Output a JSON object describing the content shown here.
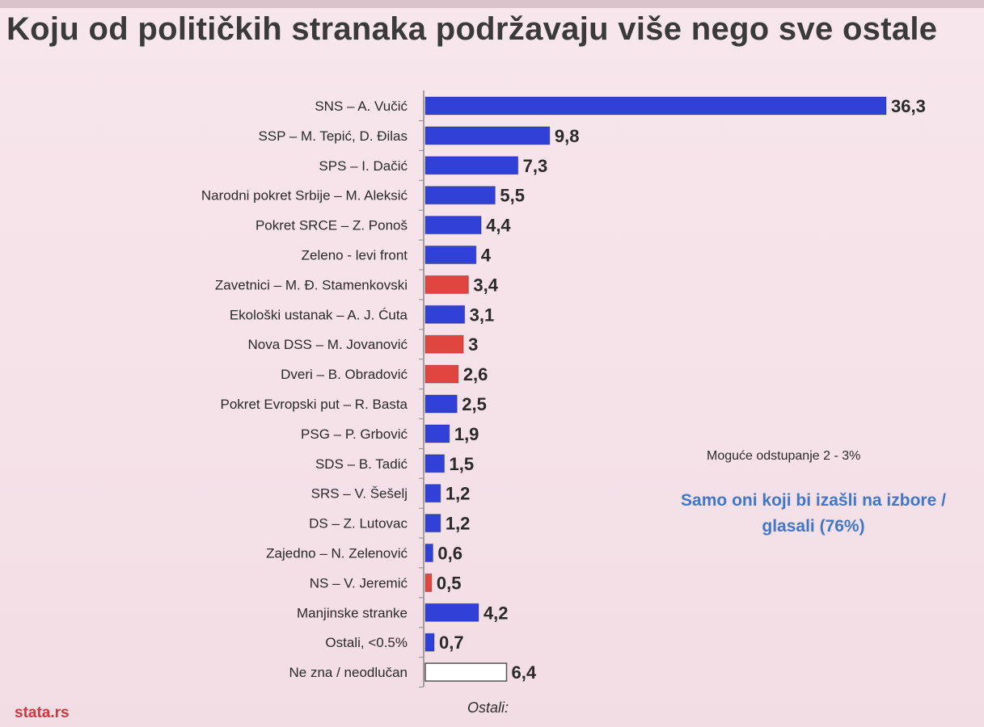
{
  "title": "Koju od političkih stranaka podržavaju više nego sve ostale",
  "note": "Moguće odstupanje 2 - 3%",
  "highlight": "Samo oni koji bi izašli na izbore / glasali (76%)",
  "footer_label": "Ostali:",
  "source": "stata.rs",
  "colors": {
    "blue": "#3140d6",
    "red": "#e0453f",
    "empty": "#ffffff",
    "outline": "#555555",
    "highlight_text": "#3f78c8",
    "source_text": "#c43c3c"
  },
  "chart_data": {
    "type": "bar",
    "orientation": "horizontal",
    "title": "Koju od političkih stranaka podržavaju više nego sve ostale",
    "categories": [
      "SNS – A. Vučić",
      "SSP – M. Tepić, D. Đilas",
      "SPS – I. Dačić",
      "Narodni pokret Srbije – M. Aleksić",
      "Pokret SRCE – Z. Ponoš",
      "Zeleno - levi front",
      "Zavetnici – M. Đ. Stamenkovski",
      "Ekološki ustanak – A. J. Ćuta",
      "Nova DSS – M. Jovanović",
      "Dveri – B. Obradović",
      "Pokret Evropski put – R. Basta",
      "PSG – P. Grbović",
      "SDS – B. Tadić",
      "SRS – V. Šešelj",
      "DS – Z. Lutovac",
      "Zajedno – N. Zelenović",
      "NS – V. Jeremić",
      "Manjinske stranke",
      "Ostali, <0.5%",
      "Ne zna / neodlučan"
    ],
    "values": [
      36.3,
      9.8,
      7.3,
      5.5,
      4.4,
      4,
      3.4,
      3.1,
      3,
      2.6,
      2.5,
      1.9,
      1.5,
      1.2,
      1.2,
      0.6,
      0.5,
      4.2,
      0.7,
      6.4
    ],
    "value_labels": [
      "36,3",
      "9,8",
      "7,3",
      "5,5",
      "4,4",
      "4",
      "3,4",
      "3,1",
      "3",
      "2,6",
      "2,5",
      "1,9",
      "1,5",
      "1,2",
      "1,2",
      "0,6",
      "0,5",
      "4,2",
      "0,7",
      "6,4"
    ],
    "bar_colors": [
      "blue",
      "blue",
      "blue",
      "blue",
      "blue",
      "blue",
      "red",
      "blue",
      "red",
      "red",
      "blue",
      "blue",
      "blue",
      "blue",
      "blue",
      "blue",
      "red",
      "blue",
      "blue",
      "empty"
    ],
    "xlim": [
      0,
      36.3
    ],
    "grid": false,
    "legend": "none"
  }
}
